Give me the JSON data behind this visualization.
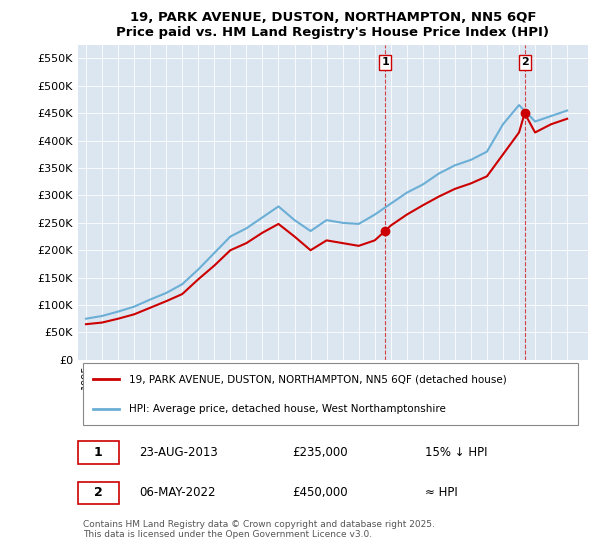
{
  "title": "19, PARK AVENUE, DUSTON, NORTHAMPTON, NN5 6QF",
  "subtitle": "Price paid vs. HM Land Registry's House Price Index (HPI)",
  "ylabel_ticks": [
    "£0",
    "£50K",
    "£100K",
    "£150K",
    "£200K",
    "£250K",
    "£300K",
    "£350K",
    "£400K",
    "£450K",
    "£500K",
    "£550K"
  ],
  "ytick_values": [
    0,
    50000,
    100000,
    150000,
    200000,
    250000,
    300000,
    350000,
    400000,
    450000,
    500000,
    550000
  ],
  "ylim": [
    0,
    575000
  ],
  "background_color": "#dce6f0",
  "plot_bg_color": "#dce6f0",
  "red_line_color": "#cc0000",
  "blue_line_color": "#6baed6",
  "marker1_date_x": 2013.65,
  "marker2_date_x": 2022.35,
  "marker1_y": 235000,
  "marker2_y": 450000,
  "legend_label1": "19, PARK AVENUE, DUSTON, NORTHAMPTON, NN5 6QF (detached house)",
  "legend_label2": "HPI: Average price, detached house, West Northamptonshire",
  "annotation1_label": "1",
  "annotation2_label": "2",
  "table_row1": [
    "1",
    "23-AUG-2013",
    "£235,000",
    "15% ↓ HPI"
  ],
  "table_row2": [
    "2",
    "06-MAY-2022",
    "£450,000",
    "≈ HPI"
  ],
  "footer": "Contains HM Land Registry data © Crown copyright and database right 2025.\nThis data is licensed under the Open Government Licence v3.0.",
  "xmin": 1995,
  "xmax": 2026
}
